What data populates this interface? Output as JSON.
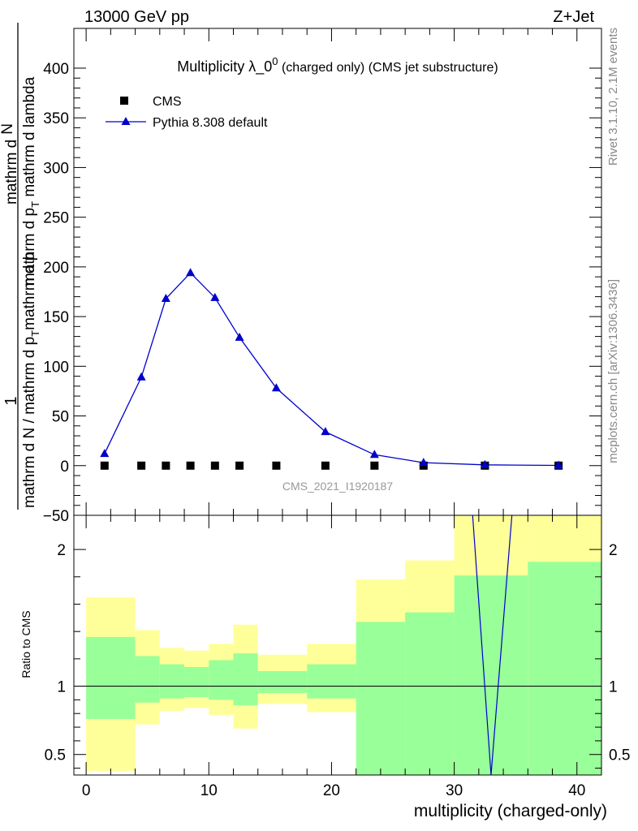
{
  "header": {
    "energy": "13000 GeV pp",
    "process": "Z+Jet",
    "rivet": "Rivet 3.1.10,  2.1M events",
    "mcplots": "mcplots.cern.ch [arXiv:1306.3436]"
  },
  "colors": {
    "cms": "#000000",
    "pythia": "#0000cc",
    "band_inner": "#99ff99",
    "band_outer": "#ffff99"
  },
  "chart_data": [
    {
      "type": "scatter",
      "title_main": "Multiplicity λ_0",
      "title_sup": "0",
      "title_sub": " (charged only) (CMS jet substructure)",
      "analysis_tag": "CMS_2021_I1920187",
      "ylabel": {
        "numerator": "1",
        "line1": "mathrm d N / mathrm d p",
        "sub1": "T",
        "line1b": "mathrm d p",
        "line2": "mathrm d",
        "line2b": "N",
        "line3": "mathrm d p",
        "sub3": "T",
        "line3b": " mathrm d lambda"
      },
      "xlim": [
        -1,
        42
      ],
      "ylim": [
        -50,
        440
      ],
      "yticks": [
        -50,
        0,
        50,
        100,
        150,
        200,
        250,
        300,
        350,
        400
      ],
      "ytick_labels": [
        "−50",
        "0",
        "50",
        "100",
        "150",
        "200",
        "250",
        "300",
        "350",
        "400"
      ],
      "legend": {
        "position": "top-left",
        "entries": [
          "CMS",
          "Pythia 8.308 default"
        ]
      },
      "series": [
        {
          "name": "CMS",
          "marker": "square",
          "x": [
            1.5,
            4.5,
            6.5,
            8.5,
            10.5,
            12.5,
            15.5,
            19.5,
            23.5,
            27.5,
            32.5,
            38.5
          ],
          "y": [
            0,
            0,
            0,
            0,
            0,
            0,
            0,
            0,
            0,
            0,
            0,
            0
          ]
        },
        {
          "name": "Pythia 8.308 default",
          "marker": "triangle",
          "x": [
            1.5,
            4.5,
            6.5,
            8.5,
            10.5,
            12.5,
            15.5,
            19.5,
            23.5,
            27.5,
            32.5,
            38.5
          ],
          "y": [
            12,
            89,
            168,
            194,
            169,
            129,
            78,
            34,
            11,
            3,
            0.8,
            0.2
          ]
        }
      ]
    },
    {
      "type": "line",
      "ylabel": "Ratio to CMS",
      "xlabel": "multiplicity (charged-only)",
      "xlim": [
        -1,
        42
      ],
      "ylim": [
        0.35,
        2.25
      ],
      "xticks": [
        0,
        10,
        20,
        30,
        40
      ],
      "xtick_labels": [
        "0",
        "10",
        "20",
        "30",
        "40"
      ],
      "yticks": [
        0.5,
        1,
        2
      ],
      "ytick_labels": [
        "0.5",
        "1",
        "2"
      ],
      "bands": [
        {
          "xlo": 0,
          "xhi": 4,
          "inner": [
            0.76,
            1.36
          ],
          "outer": [
            0.38,
            1.65
          ]
        },
        {
          "xlo": 4,
          "xhi": 6,
          "inner": [
            0.88,
            1.22
          ],
          "outer": [
            0.72,
            1.41
          ]
        },
        {
          "xlo": 6,
          "xhi": 8,
          "inner": [
            0.91,
            1.16
          ],
          "outer": [
            0.82,
            1.28
          ]
        },
        {
          "xlo": 8,
          "xhi": 10,
          "inner": [
            0.92,
            1.14
          ],
          "outer": [
            0.84,
            1.26
          ]
        },
        {
          "xlo": 10,
          "xhi": 12,
          "inner": [
            0.9,
            1.19
          ],
          "outer": [
            0.79,
            1.31
          ]
        },
        {
          "xlo": 12,
          "xhi": 14,
          "inner": [
            0.86,
            1.24
          ],
          "outer": [
            0.69,
            1.45
          ]
        },
        {
          "xlo": 14,
          "xhi": 18,
          "inner": [
            0.95,
            1.11
          ],
          "outer": [
            0.87,
            1.23
          ]
        },
        {
          "xlo": 18,
          "xhi": 22,
          "inner": [
            0.91,
            1.16
          ],
          "outer": [
            0.81,
            1.31
          ]
        },
        {
          "xlo": 22,
          "xhi": 26,
          "inner": [
            0.35,
            1.47
          ],
          "outer": [
            0.69,
            1.78
          ]
        },
        {
          "xlo": 26,
          "xhi": 30,
          "inner": [
            0.35,
            1.54
          ],
          "outer": [
            0.57,
            1.92
          ]
        },
        {
          "xlo": 30,
          "xhi": 36,
          "inner": [
            0.35,
            1.81
          ],
          "outer": [
            0.35,
            2.25
          ]
        },
        {
          "xlo": 36,
          "xhi": 42,
          "inner": [
            0.35,
            1.91
          ],
          "outer": [
            0.35,
            2.25
          ]
        }
      ],
      "series": [
        {
          "name": "Pythia 8.308 default",
          "x": [
            31.5,
            33.0,
            34.7
          ],
          "y": [
            2.25,
            0.35,
            2.25
          ]
        }
      ]
    }
  ]
}
